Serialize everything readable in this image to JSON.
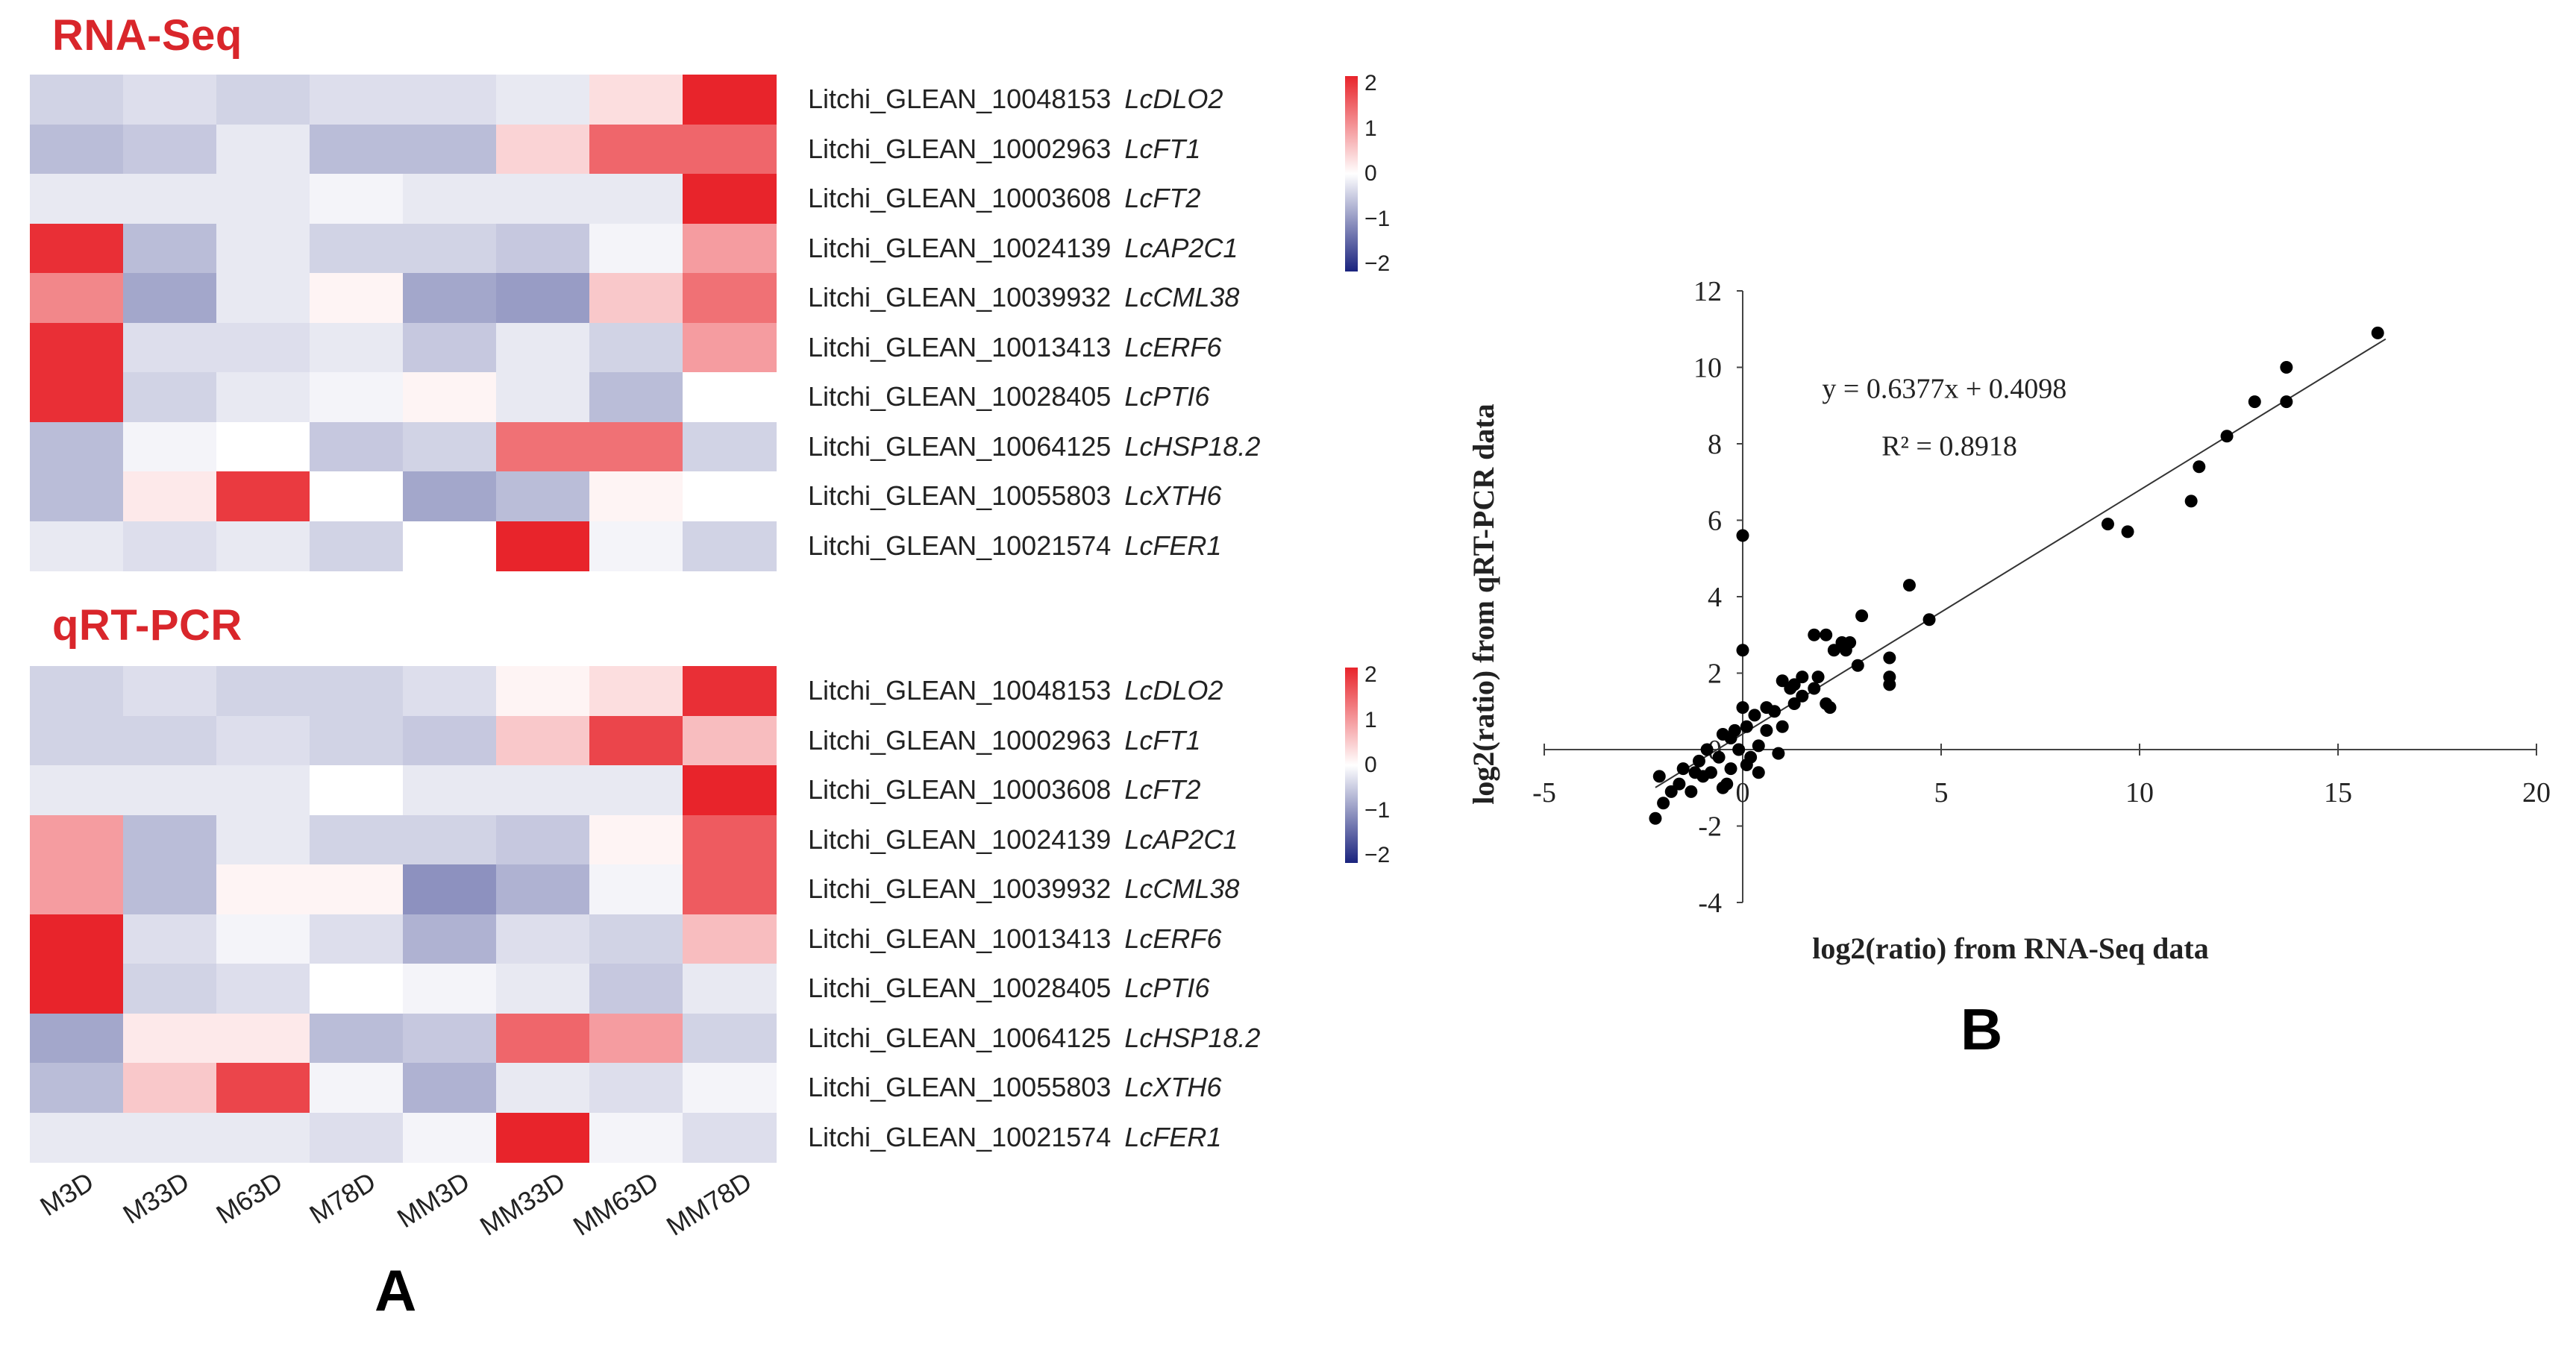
{
  "panel_a": {
    "letter": "A",
    "column_labels": [
      "M3D",
      "M33D",
      "M63D",
      "M78D",
      "MM3D",
      "MM33D",
      "MM63D",
      "MM78D"
    ],
    "genes": [
      {
        "id": "Litchi_GLEAN_10048153",
        "symbol": "LcDLO2"
      },
      {
        "id": "Litchi_GLEAN_10002963",
        "symbol": "LcFT1"
      },
      {
        "id": "Litchi_GLEAN_10003608",
        "symbol": "LcFT2"
      },
      {
        "id": "Litchi_GLEAN_10024139",
        "symbol": "LcAP2C1"
      },
      {
        "id": "Litchi_GLEAN_10039932",
        "symbol": "LcCML38"
      },
      {
        "id": "Litchi_GLEAN_10013413",
        "symbol": "LcERF6"
      },
      {
        "id": "Litchi_GLEAN_10028405",
        "symbol": "LcPTI6"
      },
      {
        "id": "Litchi_GLEAN_10064125",
        "symbol": "LcHSP18.2"
      },
      {
        "id": "Litchi_GLEAN_10055803",
        "symbol": "LcXTH6"
      },
      {
        "id": "Litchi_GLEAN_10021574",
        "symbol": "LcFER1"
      }
    ],
    "colorbar": {
      "ticks": [
        "2",
        "1",
        "0",
        "−1",
        "−2"
      ],
      "range": [
        -2,
        2
      ],
      "low_color": "#1a237e",
      "mid_color": "#ffffff",
      "high_color": "#e8242b"
    },
    "heatmaps": [
      {
        "title": "RNA-Seq",
        "values": [
          [
            -0.4,
            -0.3,
            -0.4,
            -0.3,
            -0.3,
            -0.2,
            0.3,
            2.0
          ],
          [
            -0.6,
            -0.5,
            -0.2,
            -0.6,
            -0.6,
            0.4,
            1.4,
            1.4
          ],
          [
            -0.2,
            -0.2,
            -0.2,
            -0.1,
            -0.2,
            -0.2,
            -0.2,
            2.0
          ],
          [
            1.9,
            -0.6,
            -0.2,
            -0.4,
            -0.4,
            -0.5,
            -0.1,
            0.9
          ],
          [
            1.1,
            -0.8,
            -0.2,
            0.1,
            -0.8,
            -0.9,
            0.5,
            1.3
          ],
          [
            1.9,
            -0.3,
            -0.3,
            -0.2,
            -0.5,
            -0.2,
            -0.4,
            0.9
          ],
          [
            1.9,
            -0.4,
            -0.2,
            -0.1,
            0.1,
            -0.2,
            -0.6,
            0.0
          ],
          [
            -0.6,
            -0.1,
            0.0,
            -0.5,
            -0.4,
            1.3,
            1.3,
            -0.4
          ],
          [
            -0.6,
            0.2,
            1.8,
            0.0,
            -0.8,
            -0.6,
            0.1,
            0.0
          ],
          [
            -0.2,
            -0.3,
            -0.2,
            -0.4,
            0.0,
            2.0,
            -0.1,
            -0.4
          ]
        ]
      },
      {
        "title": "qRT-PCR",
        "values": [
          [
            -0.4,
            -0.3,
            -0.4,
            -0.4,
            -0.3,
            0.1,
            0.3,
            1.9
          ],
          [
            -0.4,
            -0.4,
            -0.3,
            -0.4,
            -0.5,
            0.5,
            1.7,
            0.6
          ],
          [
            -0.2,
            -0.2,
            -0.2,
            0.0,
            -0.2,
            -0.2,
            -0.2,
            2.0
          ],
          [
            0.9,
            -0.6,
            -0.2,
            -0.4,
            -0.4,
            -0.5,
            0.1,
            1.5
          ],
          [
            0.9,
            -0.6,
            0.1,
            0.1,
            -1.0,
            -0.7,
            -0.1,
            1.5
          ],
          [
            2.0,
            -0.3,
            -0.1,
            -0.3,
            -0.7,
            -0.3,
            -0.4,
            0.6
          ],
          [
            2.0,
            -0.4,
            -0.3,
            0.0,
            -0.1,
            -0.2,
            -0.5,
            -0.2
          ],
          [
            -0.8,
            0.2,
            0.2,
            -0.6,
            -0.5,
            1.4,
            0.9,
            -0.4
          ],
          [
            -0.6,
            0.5,
            1.7,
            -0.1,
            -0.7,
            -0.2,
            -0.3,
            -0.1
          ],
          [
            -0.2,
            -0.2,
            -0.2,
            -0.3,
            -0.1,
            2.0,
            -0.1,
            -0.3
          ]
        ]
      }
    ]
  },
  "panel_b": {
    "letter": "B",
    "equation": "y = 0.6377x + 0.4098",
    "r_squared": "R² = 0.8918"
  },
  "chart_data": [
    {
      "type": "heatmap",
      "title": "RNA-Seq",
      "x_categories": [
        "M3D",
        "M33D",
        "M63D",
        "M78D",
        "MM3D",
        "MM33D",
        "MM63D",
        "MM78D"
      ],
      "y_categories": [
        "Litchi_GLEAN_10048153 LcDLO2",
        "Litchi_GLEAN_10002963 LcFT1",
        "Litchi_GLEAN_10003608 LcFT2",
        "Litchi_GLEAN_10024139 LcAP2C1",
        "Litchi_GLEAN_10039932 LcCML38",
        "Litchi_GLEAN_10013413 LcERF6",
        "Litchi_GLEAN_10028405 LcPTI6",
        "Litchi_GLEAN_10064125 LcHSP18.2",
        "Litchi_GLEAN_10055803 LcXTH6",
        "Litchi_GLEAN_10021574 LcFER1"
      ],
      "color_range": [
        -2,
        2
      ]
    },
    {
      "type": "heatmap",
      "title": "qRT-PCR",
      "x_categories": [
        "M3D",
        "M33D",
        "M63D",
        "M78D",
        "MM3D",
        "MM33D",
        "MM63D",
        "MM78D"
      ],
      "y_categories": [
        "Litchi_GLEAN_10048153 LcDLO2",
        "Litchi_GLEAN_10002963 LcFT1",
        "Litchi_GLEAN_10003608 LcFT2",
        "Litchi_GLEAN_10024139 LcAP2C1",
        "Litchi_GLEAN_10039932 LcCML38",
        "Litchi_GLEAN_10013413 LcERF6",
        "Litchi_GLEAN_10028405 LcPTI6",
        "Litchi_GLEAN_10064125 LcHSP18.2",
        "Litchi_GLEAN_10055803 LcXTH6",
        "Litchi_GLEAN_10021574 LcFER1"
      ],
      "color_range": [
        -2,
        2
      ]
    },
    {
      "type": "scatter",
      "xlabel": "log2(ratio) from RNA-Seq data",
      "ylabel": "log2(ratio) from qRT-PCR data",
      "xlim": [
        -5,
        20
      ],
      "ylim": [
        -4,
        12
      ],
      "xticks": [
        "-5",
        "0",
        "5",
        "10",
        "15",
        "20"
      ],
      "yticks": [
        "12",
        "10",
        "8",
        "6",
        "4",
        "2",
        "0",
        "-2",
        "-4"
      ],
      "trendline": {
        "slope": 0.6377,
        "intercept": 0.4098
      },
      "points": [
        [
          16.0,
          10.9
        ],
        [
          13.7,
          10.0
        ],
        [
          13.7,
          9.1
        ],
        [
          12.9,
          9.1
        ],
        [
          12.2,
          8.2
        ],
        [
          11.5,
          7.4
        ],
        [
          11.3,
          6.5
        ],
        [
          9.2,
          5.9
        ],
        [
          9.7,
          5.7
        ],
        [
          0.0,
          5.6
        ],
        [
          4.2,
          4.3
        ],
        [
          4.7,
          3.4
        ],
        [
          3.7,
          2.4
        ],
        [
          3.7,
          1.9
        ],
        [
          3.7,
          1.7
        ],
        [
          3.0,
          3.5
        ],
        [
          2.7,
          2.8
        ],
        [
          2.5,
          2.8
        ],
        [
          2.3,
          2.6
        ],
        [
          2.1,
          3.0
        ],
        [
          1.8,
          3.0
        ],
        [
          2.6,
          2.6
        ],
        [
          2.9,
          2.2
        ],
        [
          1.8,
          1.6
        ],
        [
          1.5,
          1.9
        ],
        [
          1.3,
          1.7
        ],
        [
          1.2,
          1.6
        ],
        [
          1.0,
          1.8
        ],
        [
          1.5,
          1.4
        ],
        [
          1.3,
          1.2
        ],
        [
          2.1,
          1.2
        ],
        [
          2.2,
          1.1
        ],
        [
          1.9,
          1.9
        ],
        [
          0.0,
          2.6
        ],
        [
          0.8,
          1.0
        ],
        [
          0.6,
          1.1
        ],
        [
          0.3,
          0.9
        ],
        [
          0.0,
          1.1
        ],
        [
          0.1,
          0.6
        ],
        [
          -0.2,
          0.5
        ],
        [
          -0.3,
          0.3
        ],
        [
          -0.1,
          0.0
        ],
        [
          0.4,
          0.1
        ],
        [
          0.2,
          -0.2
        ],
        [
          -0.5,
          0.4
        ],
        [
          -0.6,
          -0.2
        ],
        [
          -0.9,
          0.0
        ],
        [
          -1.1,
          -0.3
        ],
        [
          -1.2,
          -0.6
        ],
        [
          -1.0,
          -0.7
        ],
        [
          -1.5,
          -0.5
        ],
        [
          -1.6,
          -0.9
        ],
        [
          -0.4,
          -0.9
        ],
        [
          -0.5,
          -1.0
        ],
        [
          0.4,
          -0.6
        ],
        [
          0.9,
          -0.1
        ],
        [
          1.0,
          0.6
        ],
        [
          -1.8,
          -1.1
        ],
        [
          -2.1,
          -0.7
        ],
        [
          -2.0,
          -1.4
        ],
        [
          -2.2,
          -1.8
        ],
        [
          -1.3,
          -1.1
        ],
        [
          0.1,
          -0.4
        ],
        [
          -0.8,
          -0.6
        ],
        [
          0.6,
          0.5
        ],
        [
          -0.3,
          -0.5
        ]
      ]
    }
  ]
}
